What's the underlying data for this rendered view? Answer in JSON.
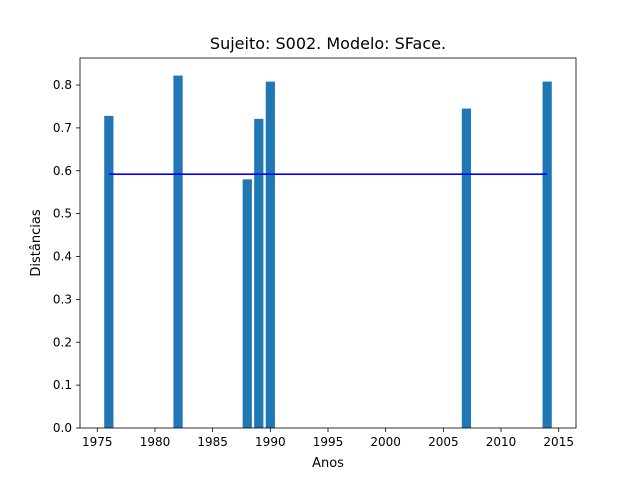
{
  "chart_data": {
    "type": "bar",
    "title": "Sujeito: S002. Modelo: SFace.",
    "xlabel": "Anos",
    "ylabel": "Distâncias",
    "x": [
      1976,
      1982,
      1988,
      1989,
      1990,
      2007,
      2014
    ],
    "values": [
      0.728,
      0.822,
      0.58,
      0.721,
      0.808,
      0.745,
      0.808
    ],
    "bar_width": 0.8,
    "reference_line": {
      "value": 0.592,
      "x_range": [
        1976,
        2014
      ],
      "color": "#0000ff"
    },
    "xlim": [
      1973.5,
      2016.5
    ],
    "ylim": [
      0,
      0.863
    ],
    "xticks": [
      1975,
      1980,
      1985,
      1990,
      1995,
      2000,
      2005,
      2010,
      2015
    ],
    "yticks": [
      0.0,
      0.1,
      0.2,
      0.3,
      0.4,
      0.5,
      0.6,
      0.7,
      0.8
    ],
    "ytick_labels": [
      "0.0",
      "0.1",
      "0.2",
      "0.3",
      "0.4",
      "0.5",
      "0.6",
      "0.7",
      "0.8"
    ],
    "bar_color": "#1f77b4",
    "grid": false,
    "legend": "none"
  }
}
